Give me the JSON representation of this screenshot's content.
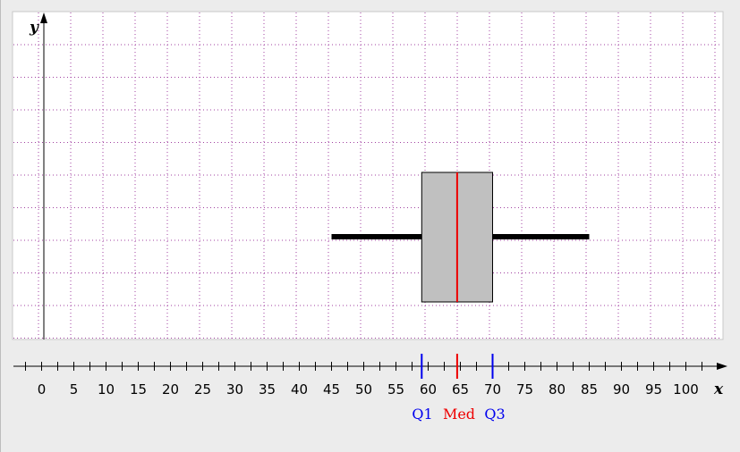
{
  "chart_data": {
    "type": "box",
    "xlabel": "x",
    "ylabel": "y",
    "xlim": [
      -5,
      105
    ],
    "x_ticks": [
      0,
      5,
      10,
      15,
      20,
      25,
      30,
      35,
      40,
      45,
      50,
      55,
      60,
      65,
      70,
      75,
      80,
      85,
      90,
      95,
      100
    ],
    "x_tick_labels": [
      "0",
      "5",
      "10",
      "15",
      "20",
      "25",
      "30",
      "35",
      "40",
      "45",
      "50",
      "55",
      "60",
      "65",
      "70",
      "75",
      "80",
      "85",
      "90",
      "95",
      "100"
    ],
    "grid": true,
    "box": {
      "min": 45,
      "q1": 59,
      "median": 64.5,
      "q3": 70,
      "max": 85
    },
    "markers": [
      {
        "label": "Q1",
        "value": 59,
        "color": "#0000ee"
      },
      {
        "label": "Med",
        "value": 64.5,
        "color": "#ee0000"
      },
      {
        "label": "Q3",
        "value": 70,
        "color": "#0000ee"
      }
    ],
    "colors": {
      "grid": "#a040a0",
      "box_fill": "#c0c0c0",
      "median": "#ee0000",
      "quartile": "#0000ee",
      "whisker": "#000000"
    }
  }
}
